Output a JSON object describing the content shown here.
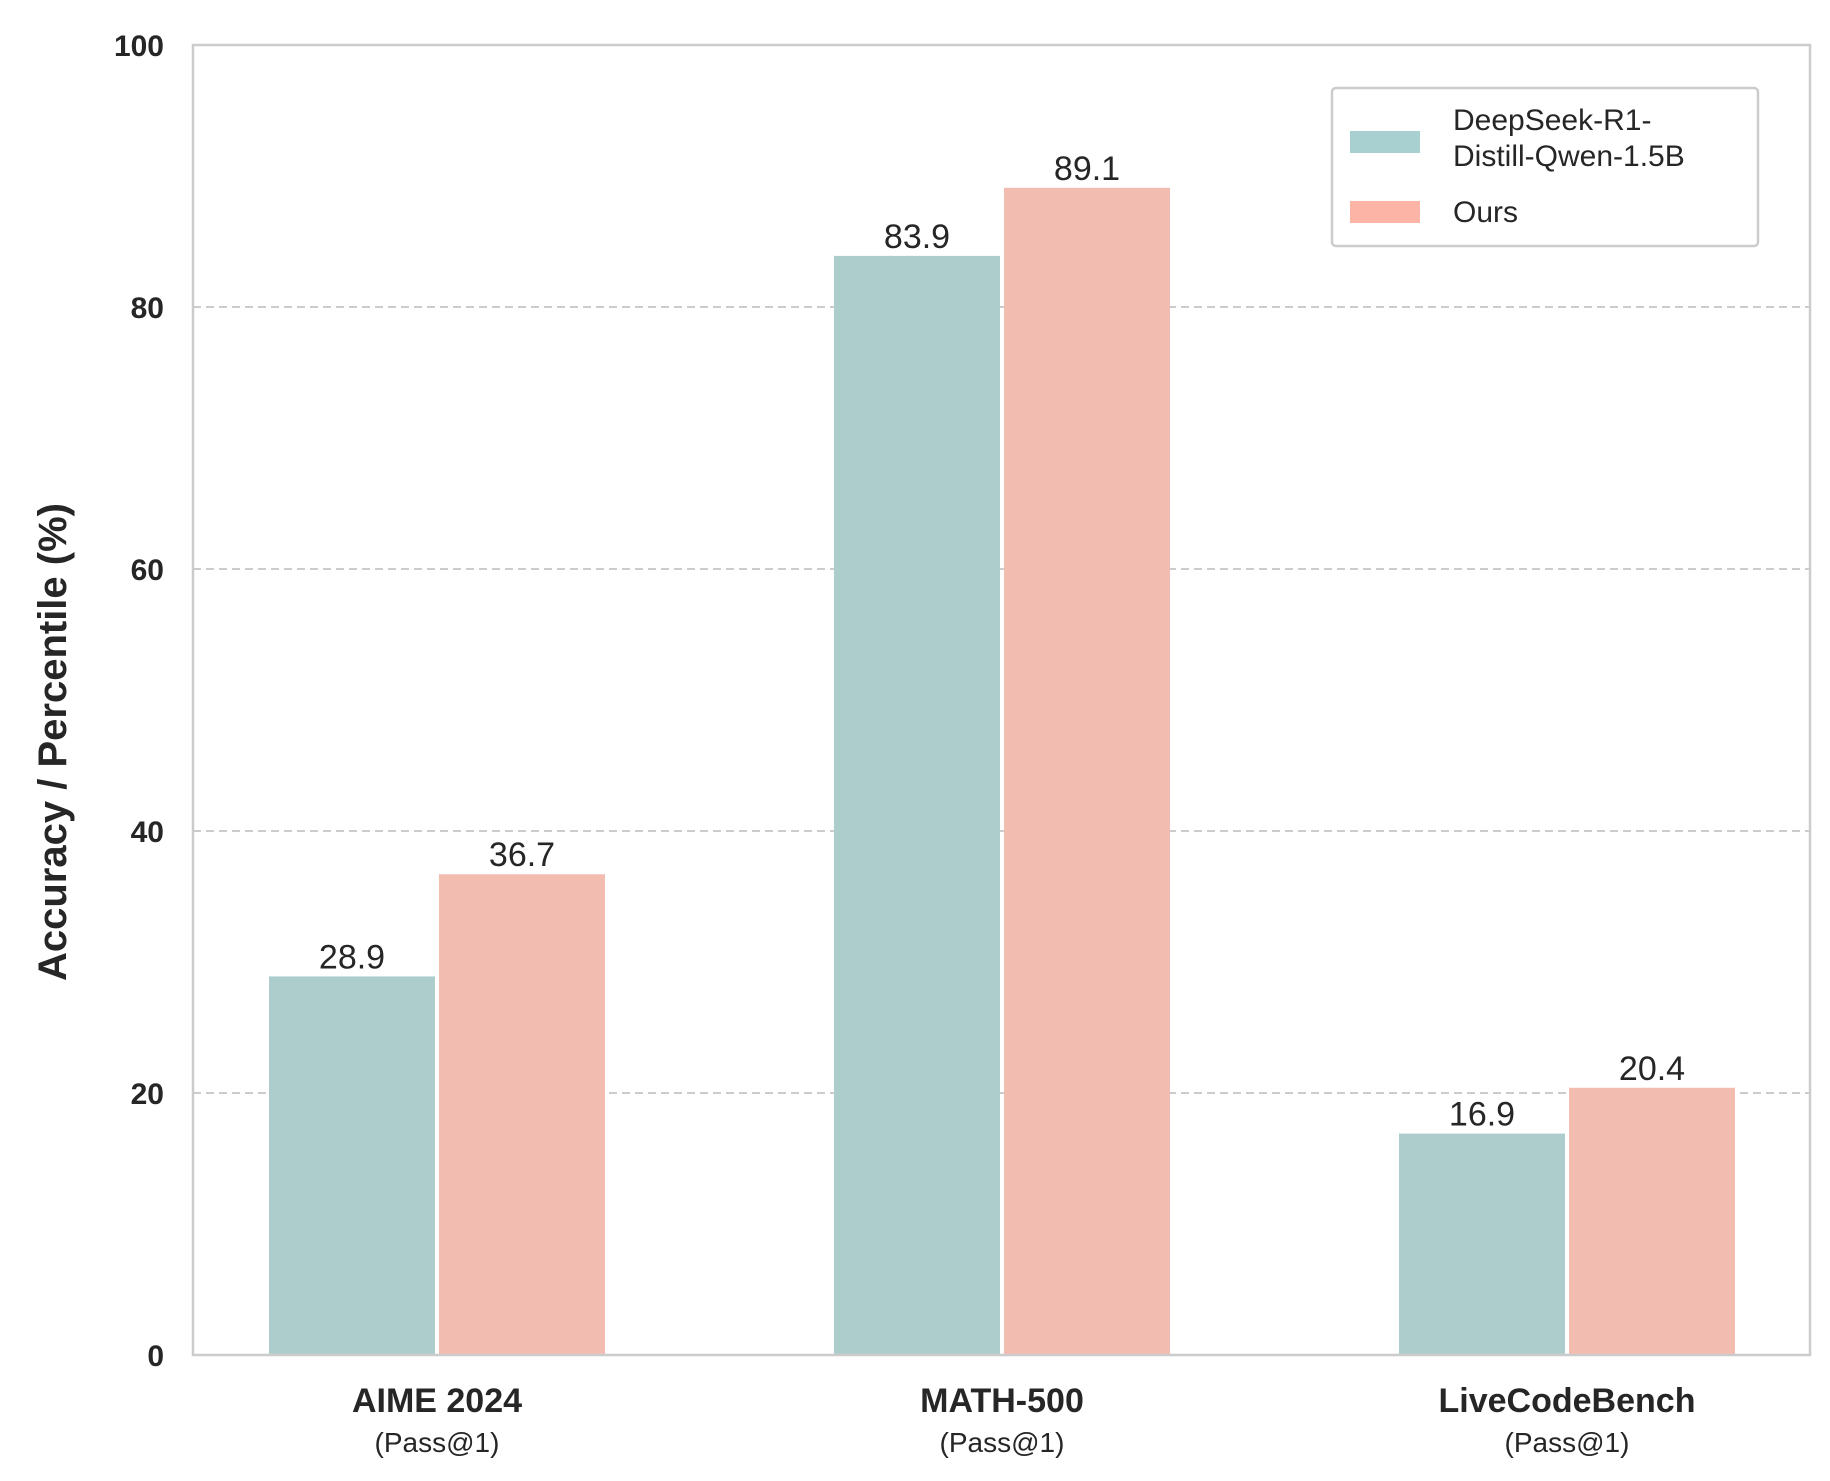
{
  "chart_data": {
    "type": "bar",
    "title": "",
    "xlabel": "",
    "ylabel": "Accuracy / Percentile (%)",
    "ylim": [
      0,
      100
    ],
    "yticks": [
      0,
      20,
      40,
      60,
      80,
      100
    ],
    "grid": "y-dashed",
    "legend_position": "top-right",
    "categories": [
      {
        "name": "AIME 2024",
        "sub": "(Pass@1)"
      },
      {
        "name": "MATH-500",
        "sub": "(Pass@1)"
      },
      {
        "name": "LiveCodeBench",
        "sub": "(Pass@1)"
      }
    ],
    "series": [
      {
        "name_lines": [
          "DeepSeek-R1-",
          "Distill-Qwen-1.5B"
        ],
        "color": "#adcdcd",
        "legend_color": "#a8d0d0",
        "values": [
          28.9,
          83.9,
          16.9
        ],
        "labels": [
          "28.9",
          "83.9",
          "16.9"
        ]
      },
      {
        "name_lines": [
          "Ours"
        ],
        "color": "#f3bcb1",
        "legend_color": "#fbb4a6",
        "values": [
          36.7,
          89.1,
          20.4
        ],
        "labels": [
          "36.7",
          "89.1",
          "20.4"
        ]
      }
    ]
  }
}
